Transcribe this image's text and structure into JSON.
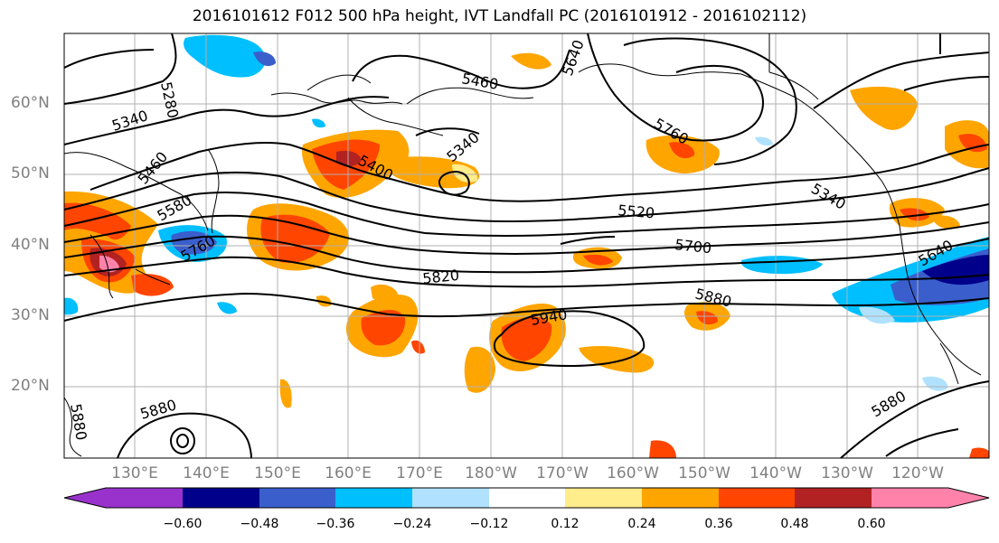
{
  "title": "2016101612 F012 500 hPa height, IVT Landfall PC (2016101912 - 2016102112)",
  "lat_labels": [
    "60°N",
    "50°N",
    "40°N",
    "30°N",
    "20°N"
  ],
  "lon_labels": [
    "130°E",
    "140°E",
    "150°E",
    "160°E",
    "170°E",
    "180°W",
    "170°W",
    "160°W",
    "150°W",
    "140°W",
    "130°W",
    "120°W"
  ],
  "contour_labels": [
    "5280",
    "5340",
    "5460",
    "5580",
    "5760",
    "5400",
    "5340",
    "5460",
    "5640",
    "5760",
    "5520",
    "5700",
    "5820",
    "5880",
    "5940",
    "5340",
    "5640",
    "5880",
    "5880",
    "5880"
  ],
  "colorbar": {
    "ticks": [
      "−0.60",
      "−0.48",
      "−0.36",
      "−0.24",
      "−0.12",
      "0.12",
      "0.24",
      "0.36",
      "0.48",
      "0.60"
    ],
    "colors": [
      "#9932cc",
      "#00008b",
      "#3a5fcd",
      "#00bfff",
      "#b0e2ff",
      "#ffffff",
      "#ffec8b",
      "#ffa500",
      "#ff4500",
      "#b22222",
      "#ff82ab"
    ]
  }
}
